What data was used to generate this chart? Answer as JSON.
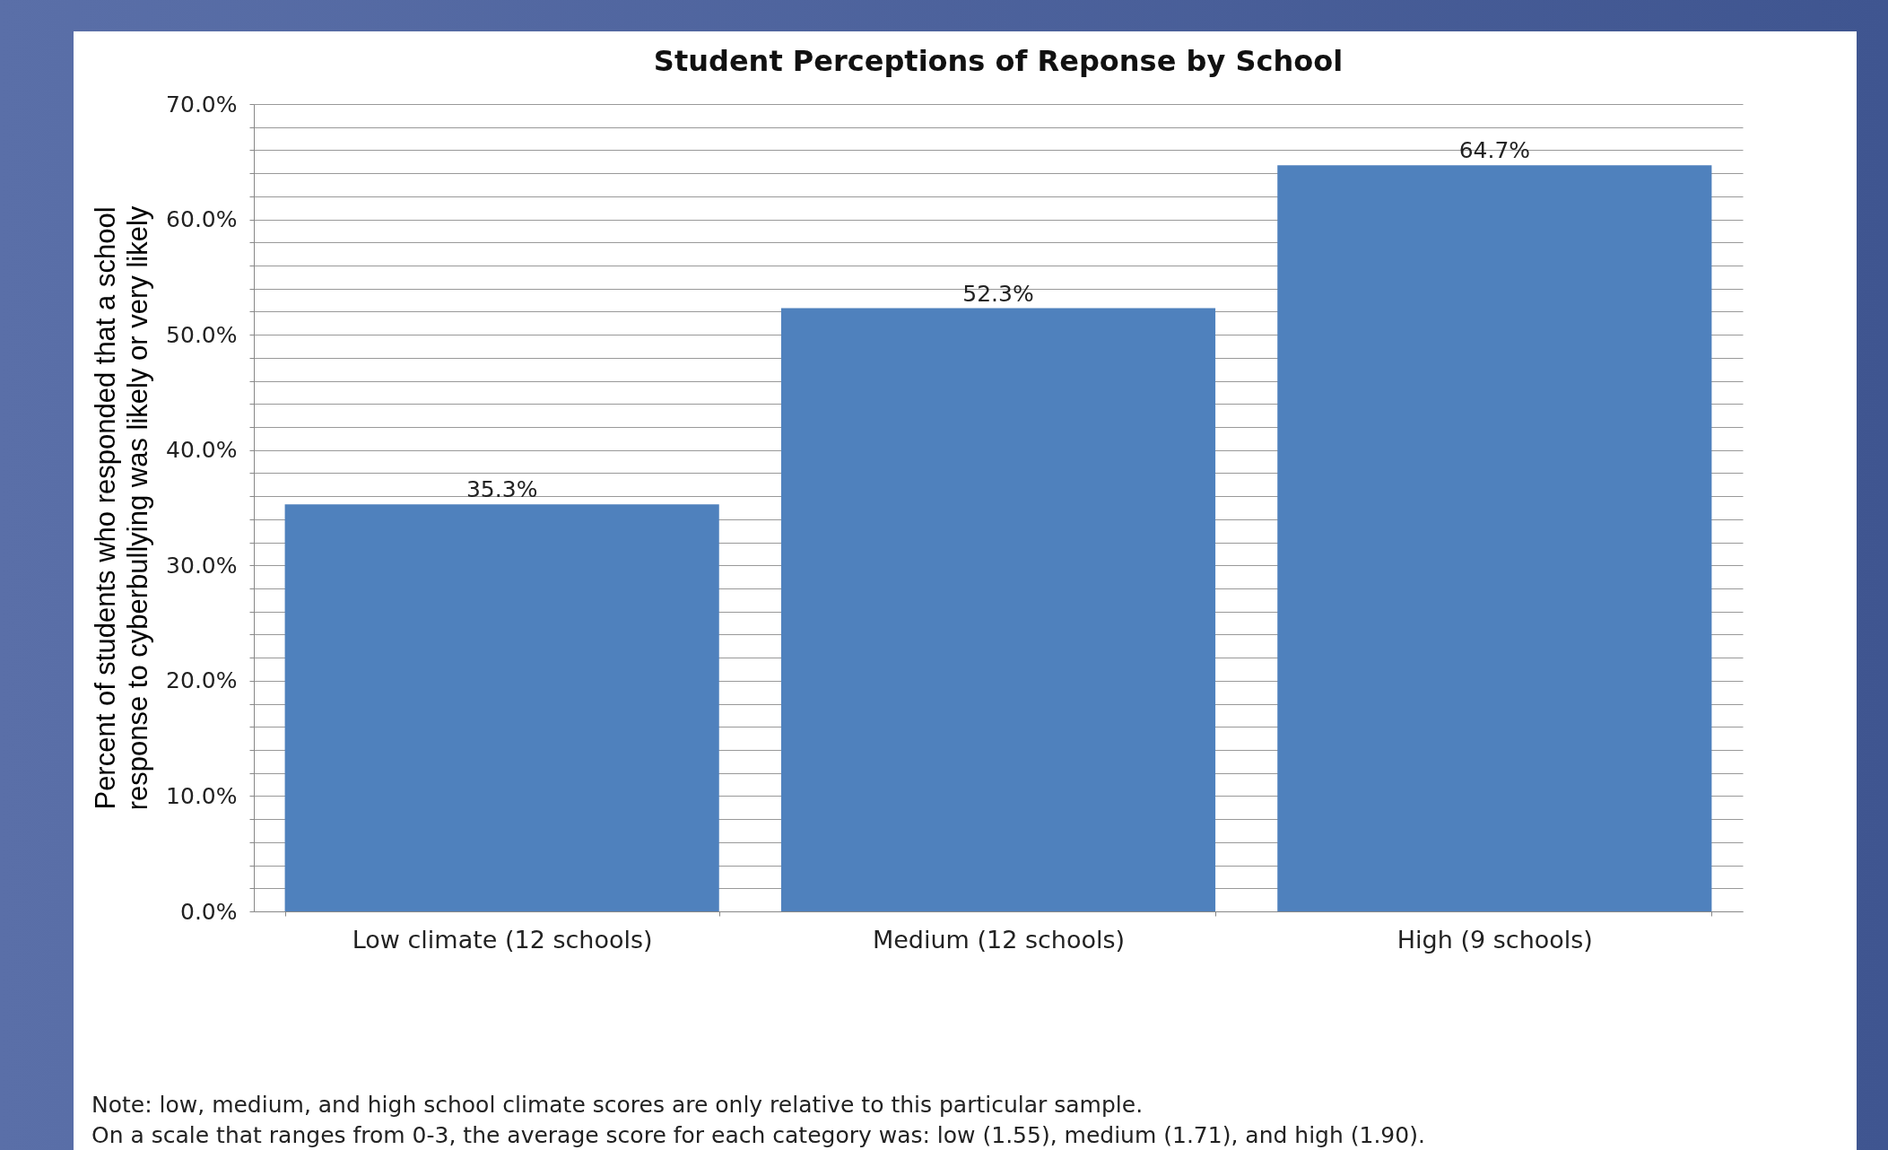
{
  "chart_data": {
    "type": "bar",
    "title": "Student Perceptions of Reponse by School",
    "ylabel": "Percent of students who responded that a school\nresponse to cyberbullying was likely or very likely",
    "categories": [
      "Low climate (12 schools)",
      "Medium (12 schools)",
      "High (9 schools)"
    ],
    "values": [
      35.3,
      52.3,
      64.7
    ],
    "value_labels": [
      "35.3%",
      "52.3%",
      "64.7%"
    ],
    "color": "#4f81bd",
    "ylim": [
      0,
      70
    ],
    "yticks": [
      {
        "value": 0,
        "label": "0.0%"
      },
      {
        "value": 2,
        "label": null
      },
      {
        "value": 4,
        "label": null
      },
      {
        "value": 6,
        "label": null
      },
      {
        "value": 8,
        "label": null
      },
      {
        "value": 10,
        "label": "10.0%"
      },
      {
        "value": 12,
        "label": null
      },
      {
        "value": 14,
        "label": null
      },
      {
        "value": 16,
        "label": null
      },
      {
        "value": 18,
        "label": null
      },
      {
        "value": 20,
        "label": "20.0%"
      },
      {
        "value": 22,
        "label": null
      },
      {
        "value": 24,
        "label": null
      },
      {
        "value": 26,
        "label": null
      },
      {
        "value": 28,
        "label": null
      },
      {
        "value": 30,
        "label": "30.0%"
      },
      {
        "value": 32,
        "label": null
      },
      {
        "value": 34,
        "label": null
      },
      {
        "value": 36,
        "label": null
      },
      {
        "value": 38,
        "label": null
      },
      {
        "value": 40,
        "label": "40.0%"
      },
      {
        "value": 42,
        "label": null
      },
      {
        "value": 44,
        "label": null
      },
      {
        "value": 46,
        "label": null
      },
      {
        "value": 48,
        "label": null
      },
      {
        "value": 50,
        "label": "50.0%"
      },
      {
        "value": 52,
        "label": null
      },
      {
        "value": 54,
        "label": null
      },
      {
        "value": 56,
        "label": null
      },
      {
        "value": 58,
        "label": null
      },
      {
        "value": 60,
        "label": "60.0%"
      },
      {
        "value": 62,
        "label": null
      },
      {
        "value": 64,
        "label": null
      },
      {
        "value": 66,
        "label": null
      },
      {
        "value": 68,
        "label": null
      },
      {
        "value": 70,
        "label": "70.0%"
      }
    ],
    "grid": "y",
    "annotations": [
      "Note: low, medium, and high school climate scores are only relative to this particular sample.",
      "On a scale that ranges from 0-3, the average score for each category was: low (1.55), medium (1.71), and high (1.90)."
    ]
  }
}
